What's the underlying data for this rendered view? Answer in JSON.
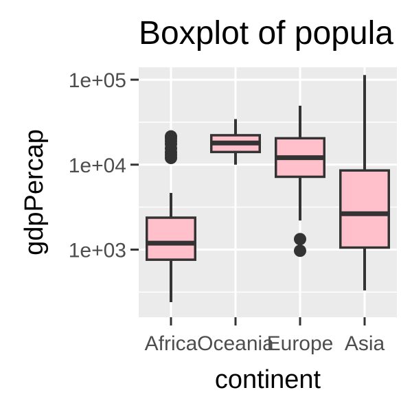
{
  "chart_data": {
    "type": "boxplot",
    "title": "Boxplot of popula",
    "xlabel": "continent",
    "ylabel": "gdpPercap",
    "y_scale": "log10",
    "ylim": [
      160,
      140000
    ],
    "y_ticks": [
      {
        "value": 1000,
        "label": "1e+03"
      },
      {
        "value": 10000,
        "label": "1e+04"
      },
      {
        "value": 100000,
        "label": "1e+05"
      }
    ],
    "categories": [
      "Africa",
      "Oceania",
      "Europe",
      "Asia"
    ],
    "boxes": [
      {
        "category": "Africa",
        "whisker_low": 241,
        "q1": 761,
        "median": 1192,
        "q3": 2377,
        "whisker_high": 4650,
        "outliers": [
          12000,
          13000,
          14000,
          15500,
          17500,
          19000,
          20500,
          21500
        ]
      },
      {
        "category": "Oceania",
        "whisker_low": 10000,
        "q1": 14100,
        "median": 17980,
        "q3": 22200,
        "whisker_high": 34400,
        "outliers": []
      },
      {
        "category": "Europe",
        "whisker_low": 2200,
        "q1": 7200,
        "median": 12080,
        "q3": 20460,
        "whisker_high": 49400,
        "outliers": [
          970,
          1330
        ]
      },
      {
        "category": "Asia",
        "whisker_low": 331,
        "q1": 1057,
        "median": 2646,
        "q3": 8550,
        "whisker_high": 113500,
        "outliers": []
      }
    ],
    "box_fill": "#ffc0cb",
    "box_stroke": "#333333",
    "panel_background": "#ebebeb",
    "grid": true,
    "legend": "none"
  }
}
